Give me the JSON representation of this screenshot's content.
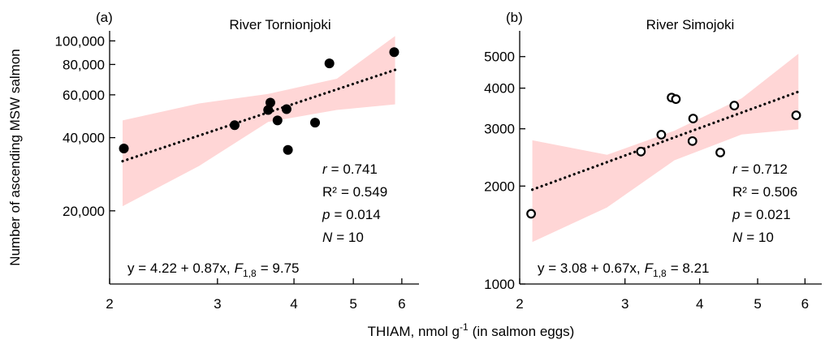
{
  "chart_data": [
    {
      "type": "scatter",
      "panel": "(a)",
      "title": "River Tornionjoki",
      "y_label": "Number of ascending MSW salmon",
      "xscale": "log",
      "yscale": "log",
      "xlim": [
        2,
        6.4
      ],
      "xticks": [
        2,
        3,
        4,
        5,
        6
      ],
      "ylim": [
        10000,
        110000
      ],
      "yticks": [
        {
          "value": 20000,
          "label": "20,000"
        },
        {
          "value": 40000,
          "label": "40,000"
        },
        {
          "value": 60000,
          "label": "60,000"
        },
        {
          "value": 80000,
          "label": "80,000"
        },
        {
          "value": 100000,
          "label": "100,000"
        }
      ],
      "marker": "filled",
      "color": "#000000",
      "x": [
        2.11,
        3.2,
        3.63,
        3.66,
        3.76,
        3.89,
        3.91,
        4.33,
        4.57,
        5.83
      ],
      "values": [
        36100,
        45000,
        52000,
        55700,
        47100,
        52400,
        35600,
        46100,
        80800,
        89900
      ],
      "fit": {
        "x": [
          2.1,
          5.85
        ],
        "values": [
          32000,
          76000
        ],
        "color": "#000000"
      },
      "band": {
        "x": [
          2.1,
          2.8,
          3.63,
          4.7,
          5.85
        ],
        "upper": [
          47100,
          55300,
          60500,
          69900,
          104700
        ],
        "lower": [
          20900,
          30600,
          46400,
          52000,
          54800
        ],
        "color": "#ffd6d6"
      },
      "stats": [
        {
          "symbol": "r",
          "text": "= 0.741"
        },
        {
          "symbol": "R²",
          "text": "= 0.549"
        },
        {
          "symbol": "p",
          "text": "= 0.014"
        },
        {
          "symbol": "N",
          "text": "= 10"
        }
      ],
      "equation": {
        "text": "y = 4.22 + 0.87x,",
        "f": "F",
        "f_sub": "1,8",
        "f_value": "= 9.75"
      }
    },
    {
      "type": "scatter",
      "panel": "(b)",
      "title": "River Simojoki",
      "xscale": "log",
      "yscale": "log",
      "xlim": [
        2,
        6.4
      ],
      "xticks": [
        2,
        3,
        4,
        5,
        6
      ],
      "ylim": [
        1000,
        6000
      ],
      "yticks": [
        1000,
        2000,
        3000,
        4000,
        5000
      ],
      "marker": "hollow",
      "color": "#000000",
      "x": [
        2.09,
        3.19,
        3.59,
        3.65,
        3.45,
        3.9,
        3.89,
        4.33,
        4.57,
        5.8
      ],
      "values": [
        1644,
        2553,
        3742,
        3700,
        2877,
        3225,
        2750,
        2536,
        3535,
        3300
      ],
      "fit": {
        "x": [
          2.1,
          5.85
        ],
        "values": [
          1950,
          3900
        ],
        "color": "#000000"
      },
      "band": {
        "x": [
          2.1,
          2.8,
          3.63,
          4.7,
          5.85
        ],
        "upper": [
          2765,
          2495,
          2960,
          3720,
          5100
        ],
        "lower": [
          1346,
          1720,
          2400,
          2880,
          2990
        ],
        "color": "#ffd6d6"
      },
      "stats": [
        {
          "symbol": "r",
          "text": "= 0.712"
        },
        {
          "symbol": "R²",
          "text": "= 0.506"
        },
        {
          "symbol": "p",
          "text": "= 0.021"
        },
        {
          "symbol": "N",
          "text": "= 10"
        }
      ],
      "equation": {
        "text": "y = 3.08 + 0.67x,",
        "f": "F",
        "f_sub": "1,8",
        "f_value": "= 8.21"
      }
    }
  ],
  "x_label": {
    "text": "THIAM, nmol g",
    "sup": "-1",
    "suffix": "(in salmon eggs)"
  }
}
